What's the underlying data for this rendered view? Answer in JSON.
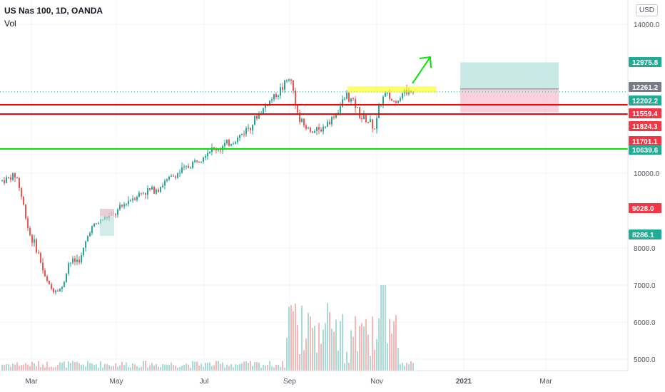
{
  "header": {
    "title": "US Nas 100, 1D, OANDA",
    "subtitle": "Vol"
  },
  "currency_button": "USD",
  "chart_data": {
    "type": "candlestick",
    "x_ticks": [
      "Mar",
      "May",
      "Jul",
      "Sep",
      "Nov",
      "2021",
      "Mar"
    ],
    "y_ticks": [
      "14000.0",
      "10000.0",
      "9028.0",
      "8000.0",
      "7000.0",
      "6000.0",
      "5000.0"
    ],
    "price_labels": [
      {
        "value": "12975.8",
        "color": "#22ab94"
      },
      {
        "value": "12261.2",
        "color": "#787b86"
      },
      {
        "value": "12202.2",
        "color": "#22ab94"
      },
      {
        "value": "11559.4",
        "color": "#f23645"
      },
      {
        "value": "11824.3",
        "color": "#f23645"
      },
      {
        "value": "11701.1",
        "color": "#f23645"
      },
      {
        "value": "10639.6",
        "color": "#22ab94"
      },
      {
        "value": "9028.0",
        "color": "#f23645"
      },
      {
        "value": "8286.1",
        "color": "#22ab94"
      }
    ],
    "horizontal_lines": [
      {
        "price": 11824.3,
        "color": "#ff0000"
      },
      {
        "price": 11559.4,
        "color": "#ff0000"
      },
      {
        "price": 10639.6,
        "color": "#00e600"
      }
    ],
    "colors": {
      "up": "#26a69a",
      "down": "#ef5350",
      "vol_up": "#a7dcd6",
      "vol_down": "#f7b7b4"
    }
  }
}
